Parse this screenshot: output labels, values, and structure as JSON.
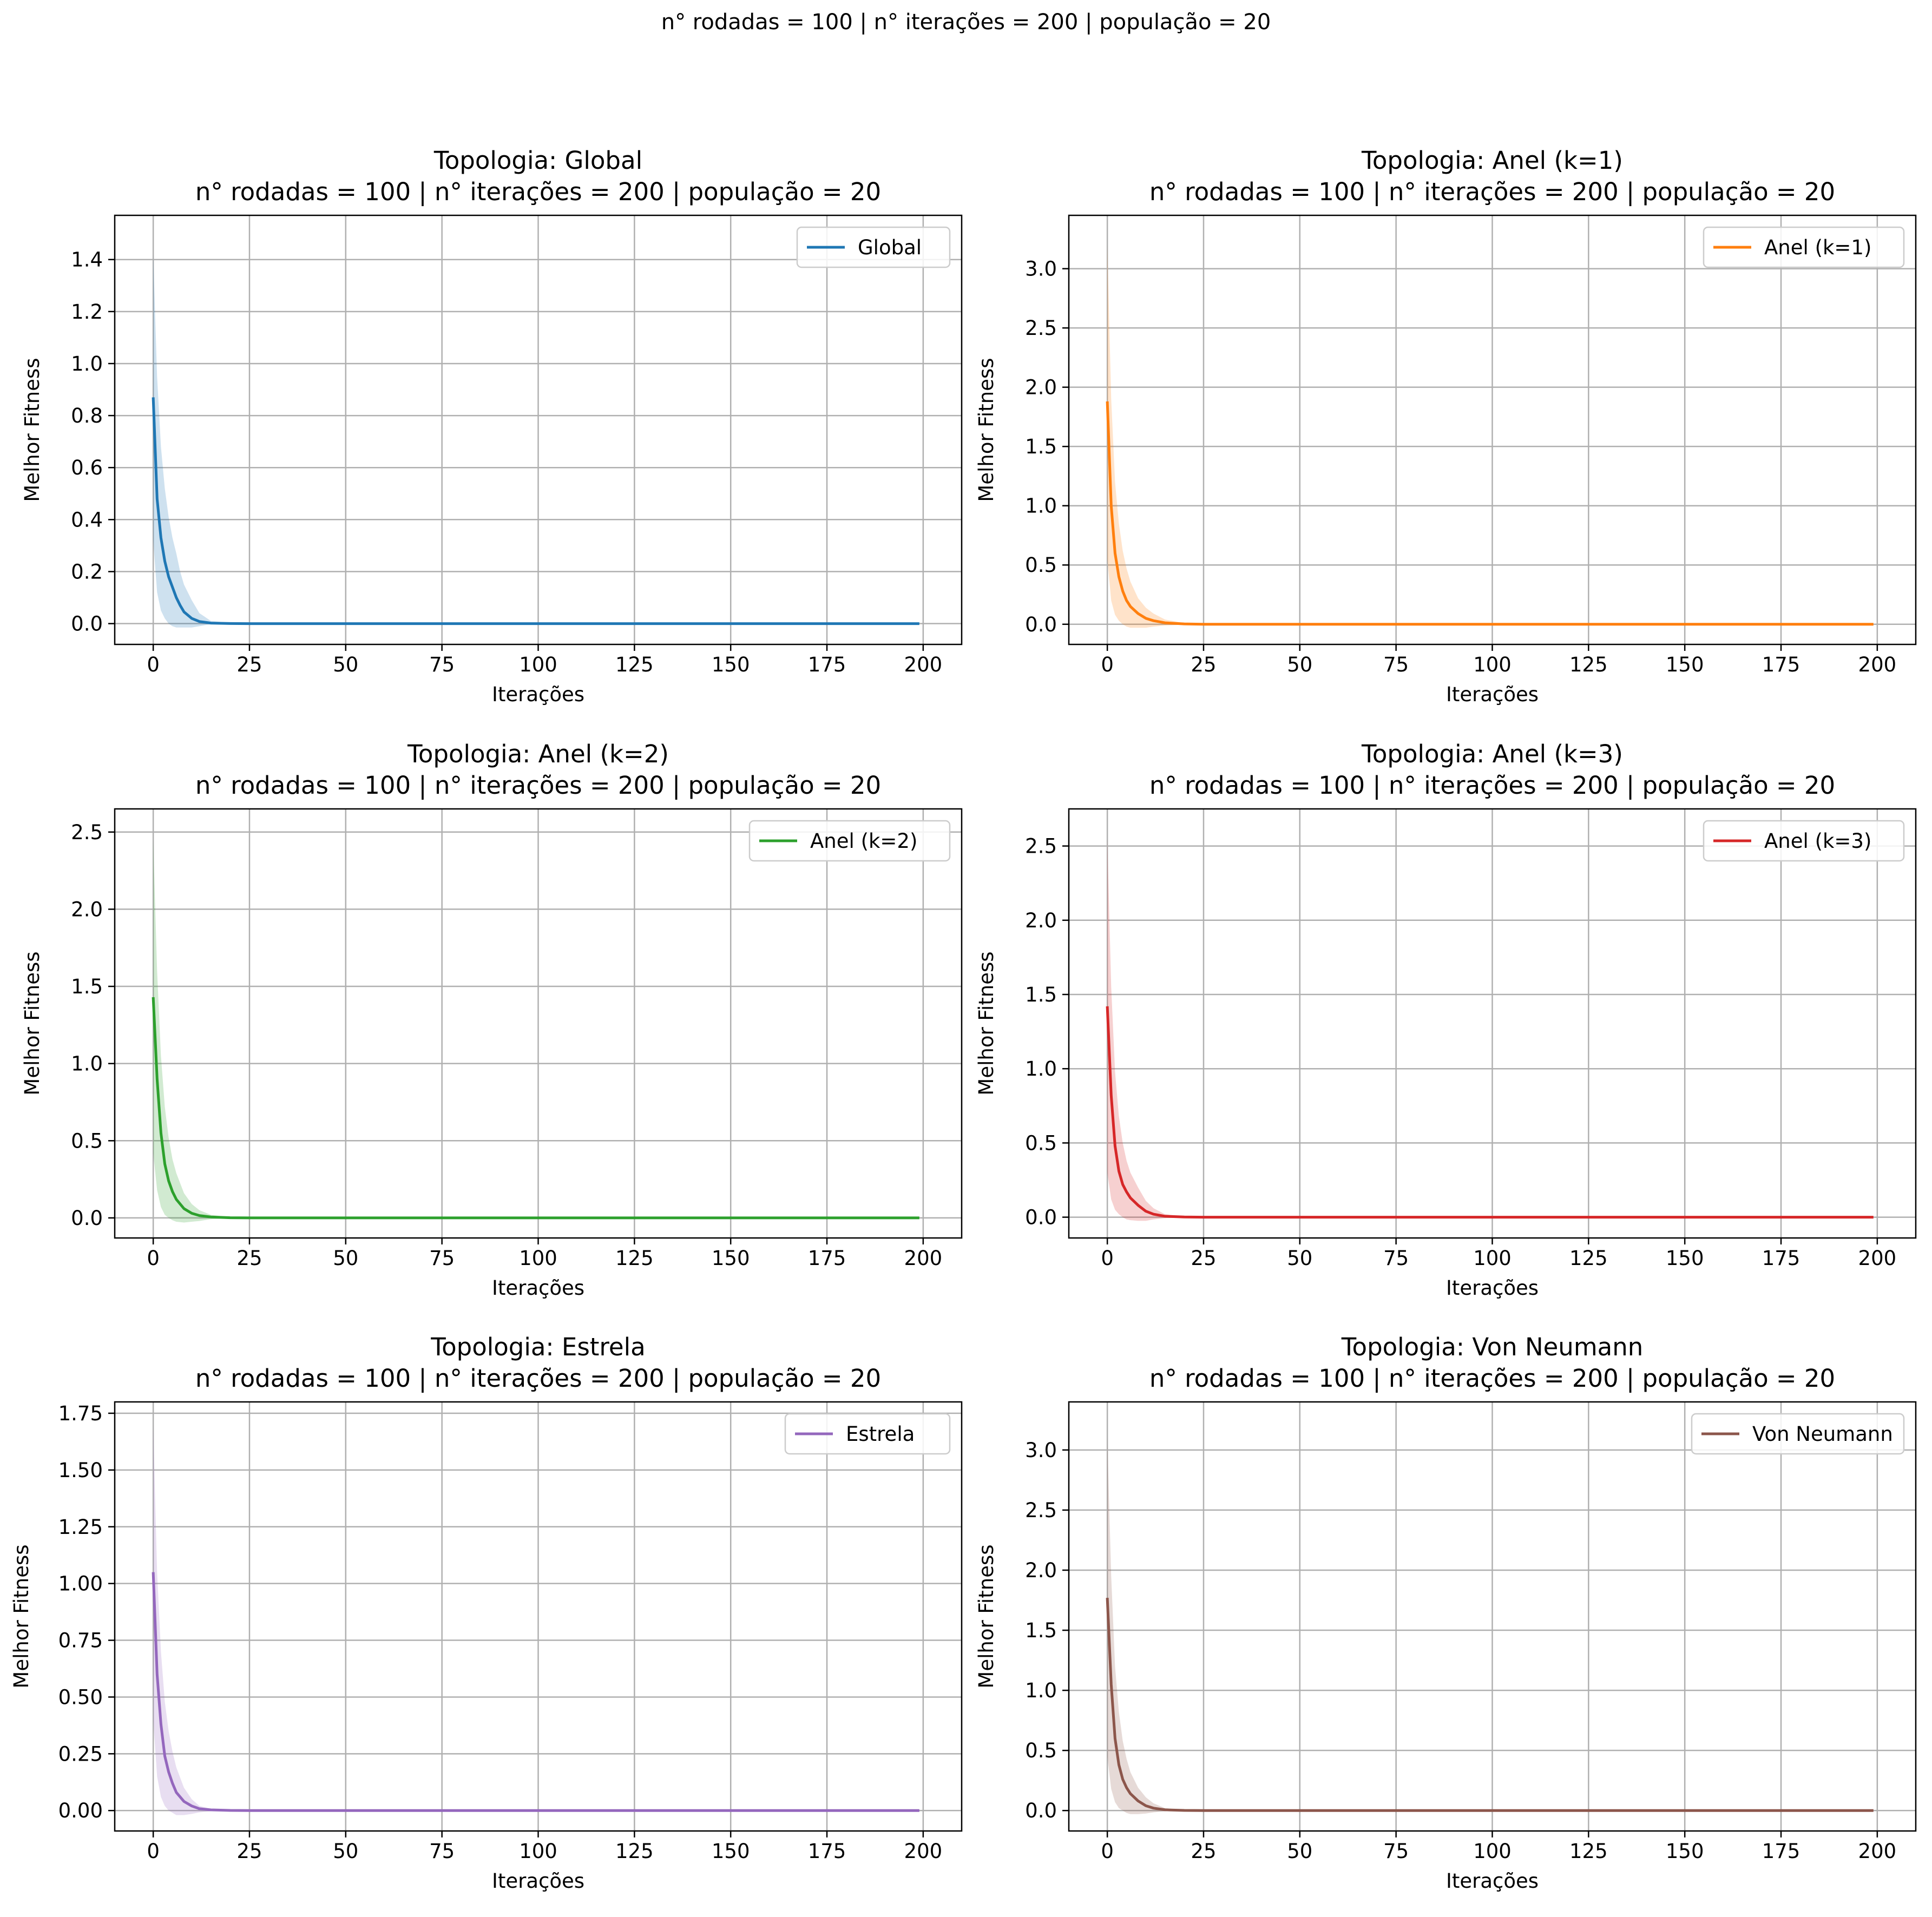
{
  "suptitle": "n° rodadas = 100 | n° iterações = 200 | população = 20",
  "chart_data": [
    {
      "type": "line",
      "title": "Topologia: Global",
      "subtitle": "n° rodadas = 100 | n° iterações = 200 | população = 20",
      "xlabel": "Iterações",
      "ylabel": "Melhor Fitness",
      "xlim": [
        -10,
        210
      ],
      "ylim": [
        -0.08,
        1.57
      ],
      "xticks": [
        0,
        25,
        50,
        75,
        100,
        125,
        150,
        175,
        200
      ],
      "yticks": [
        0.0,
        0.2,
        0.4,
        0.6,
        0.8,
        1.0,
        1.2,
        1.4
      ],
      "ytick_labels": [
        "0.0",
        "0.2",
        "0.4",
        "0.6",
        "0.8",
        "1.0",
        "1.2",
        "1.4"
      ],
      "grid": true,
      "legend_position": "top-right",
      "color": "#1f77b4",
      "series": [
        {
          "name": "Global",
          "x": [
            0,
            1,
            2,
            3,
            4,
            5,
            6,
            7,
            8,
            10,
            12,
            15,
            20,
            25,
            50,
            100,
            150,
            199
          ],
          "y": [
            0.87,
            0.48,
            0.33,
            0.24,
            0.18,
            0.14,
            0.1,
            0.07,
            0.045,
            0.02,
            0.008,
            0.002,
            0.0004,
            0.0,
            0.0,
            0.0,
            0.0,
            0.0
          ],
          "upper": [
            1.42,
            0.95,
            0.68,
            0.52,
            0.41,
            0.33,
            0.27,
            0.2,
            0.15,
            0.09,
            0.04,
            0.01,
            0.003,
            0.0,
            0.0,
            0.0,
            0.0,
            0.0
          ],
          "lower": [
            0.32,
            0.12,
            0.05,
            0.02,
            0.0,
            -0.01,
            -0.015,
            -0.015,
            -0.015,
            -0.015,
            -0.01,
            -0.002,
            -0.001,
            0.0,
            0.0,
            0.0,
            0.0,
            0.0
          ]
        }
      ]
    },
    {
      "type": "line",
      "title": "Topologia: Anel (k=1)",
      "subtitle": "n° rodadas = 100 | n° iterações = 200 | população = 20",
      "xlabel": "Iterações",
      "ylabel": "Melhor Fitness",
      "xlim": [
        -10,
        210
      ],
      "ylim": [
        -0.17,
        3.45
      ],
      "xticks": [
        0,
        25,
        50,
        75,
        100,
        125,
        150,
        175,
        200
      ],
      "yticks": [
        0.0,
        0.5,
        1.0,
        1.5,
        2.0,
        2.5,
        3.0
      ],
      "ytick_labels": [
        "0.0",
        "0.5",
        "1.0",
        "1.5",
        "2.0",
        "2.5",
        "3.0"
      ],
      "grid": true,
      "legend_position": "top-right",
      "color": "#ff7f0e",
      "series": [
        {
          "name": "Anel (k=1)",
          "x": [
            0,
            1,
            2,
            3,
            4,
            5,
            6,
            8,
            10,
            12,
            15,
            20,
            25,
            50,
            100,
            150,
            199
          ],
          "y": [
            1.88,
            1.0,
            0.6,
            0.4,
            0.28,
            0.2,
            0.15,
            0.09,
            0.05,
            0.03,
            0.012,
            0.003,
            0.0,
            0.0,
            0.0,
            0.0,
            0.0
          ],
          "upper": [
            3.2,
            1.9,
            1.2,
            0.85,
            0.62,
            0.47,
            0.36,
            0.22,
            0.14,
            0.09,
            0.04,
            0.01,
            0.002,
            0.0,
            0.0,
            0.0,
            0.0
          ],
          "lower": [
            0.55,
            0.2,
            0.08,
            0.03,
            0.0,
            -0.02,
            -0.03,
            -0.03,
            -0.03,
            -0.02,
            -0.01,
            -0.003,
            0.0,
            0.0,
            0.0,
            0.0,
            0.0
          ]
        }
      ]
    },
    {
      "type": "line",
      "title": "Topologia: Anel (k=2)",
      "subtitle": "n° rodadas = 100 | n° iterações = 200 | população = 20",
      "xlabel": "Iterações",
      "ylabel": "Melhor Fitness",
      "xlim": [
        -10,
        210
      ],
      "ylim": [
        -0.13,
        2.65
      ],
      "xticks": [
        0,
        25,
        50,
        75,
        100,
        125,
        150,
        175,
        200
      ],
      "yticks": [
        0.0,
        0.5,
        1.0,
        1.5,
        2.0,
        2.5
      ],
      "ytick_labels": [
        "0.0",
        "0.5",
        "1.0",
        "1.5",
        "2.0",
        "2.5"
      ],
      "grid": true,
      "legend_position": "top-right",
      "color": "#2ca02c",
      "series": [
        {
          "name": "Anel (k=2)",
          "x": [
            0,
            1,
            2,
            3,
            4,
            5,
            6,
            8,
            10,
            12,
            15,
            20,
            25,
            50,
            100,
            150,
            199
          ],
          "y": [
            1.43,
            0.9,
            0.55,
            0.35,
            0.24,
            0.17,
            0.12,
            0.06,
            0.03,
            0.015,
            0.006,
            0.001,
            0.0,
            0.0,
            0.0,
            0.0,
            0.0
          ],
          "upper": [
            2.45,
            1.6,
            1.05,
            0.72,
            0.52,
            0.38,
            0.29,
            0.16,
            0.09,
            0.05,
            0.02,
            0.004,
            0.0,
            0.0,
            0.0,
            0.0,
            0.0
          ],
          "lower": [
            0.42,
            0.18,
            0.07,
            0.02,
            0.0,
            -0.015,
            -0.025,
            -0.03,
            -0.025,
            -0.02,
            -0.008,
            -0.002,
            0.0,
            0.0,
            0.0,
            0.0,
            0.0
          ]
        }
      ]
    },
    {
      "type": "line",
      "title": "Topologia: Anel (k=3)",
      "subtitle": "n° rodadas = 100 | n° iterações = 200 | população = 20",
      "xlabel": "Iterações",
      "ylabel": "Melhor Fitness",
      "xlim": [
        -10,
        210
      ],
      "ylim": [
        -0.14,
        2.75
      ],
      "xticks": [
        0,
        25,
        50,
        75,
        100,
        125,
        150,
        175,
        200
      ],
      "yticks": [
        0.0,
        0.5,
        1.0,
        1.5,
        2.0,
        2.5
      ],
      "ytick_labels": [
        "0.0",
        "0.5",
        "1.0",
        "1.5",
        "2.0",
        "2.5"
      ],
      "grid": true,
      "legend_position": "top-right",
      "color": "#d62728",
      "series": [
        {
          "name": "Anel (k=3)",
          "x": [
            0,
            1,
            2,
            3,
            4,
            5,
            6,
            8,
            10,
            12,
            15,
            20,
            25,
            50,
            100,
            150,
            199
          ],
          "y": [
            1.42,
            0.82,
            0.48,
            0.31,
            0.22,
            0.17,
            0.13,
            0.08,
            0.04,
            0.02,
            0.006,
            0.001,
            0.0,
            0.0,
            0.0,
            0.0,
            0.0
          ],
          "upper": [
            2.55,
            1.55,
            0.98,
            0.68,
            0.5,
            0.38,
            0.3,
            0.2,
            0.11,
            0.06,
            0.02,
            0.004,
            0.0,
            0.0,
            0.0,
            0.0,
            0.0
          ],
          "lower": [
            0.3,
            0.12,
            0.05,
            0.02,
            0.0,
            -0.015,
            -0.02,
            -0.025,
            -0.025,
            -0.015,
            -0.006,
            -0.002,
            0.0,
            0.0,
            0.0,
            0.0,
            0.0
          ]
        }
      ]
    },
    {
      "type": "line",
      "title": "Topologia: Estrela",
      "subtitle": "n° rodadas = 100 | n° iterações = 200 | população = 20",
      "xlabel": "Iterações",
      "ylabel": "Melhor Fitness",
      "xlim": [
        -10,
        210
      ],
      "ylim": [
        -0.09,
        1.8
      ],
      "xticks": [
        0,
        25,
        50,
        75,
        100,
        125,
        150,
        175,
        200
      ],
      "yticks": [
        0.0,
        0.25,
        0.5,
        0.75,
        1.0,
        1.25,
        1.5,
        1.75
      ],
      "ytick_labels": [
        "0.00",
        "0.25",
        "0.50",
        "0.75",
        "1.00",
        "1.25",
        "1.50",
        "1.75"
      ],
      "grid": true,
      "legend_position": "top-right",
      "color": "#9467bd",
      "series": [
        {
          "name": "Estrela",
          "x": [
            0,
            1,
            2,
            3,
            4,
            5,
            6,
            8,
            10,
            12,
            15,
            20,
            25,
            50,
            100,
            150,
            199
          ],
          "y": [
            1.05,
            0.6,
            0.38,
            0.24,
            0.17,
            0.12,
            0.08,
            0.04,
            0.02,
            0.008,
            0.003,
            0.0005,
            0.0,
            0.0,
            0.0,
            0.0,
            0.0
          ],
          "upper": [
            1.7,
            1.05,
            0.7,
            0.48,
            0.35,
            0.26,
            0.19,
            0.1,
            0.05,
            0.02,
            0.008,
            0.002,
            0.0,
            0.0,
            0.0,
            0.0,
            0.0
          ],
          "lower": [
            0.4,
            0.15,
            0.06,
            0.02,
            0.0,
            -0.01,
            -0.02,
            -0.02,
            -0.015,
            -0.008,
            -0.003,
            -0.001,
            0.0,
            0.0,
            0.0,
            0.0,
            0.0
          ]
        }
      ]
    },
    {
      "type": "line",
      "title": "Topologia: Von Neumann",
      "subtitle": "n° rodadas = 100 | n° iterações = 200 | população = 20",
      "xlabel": "Iterações",
      "ylabel": "Melhor Fitness",
      "xlim": [
        -10,
        210
      ],
      "ylim": [
        -0.17,
        3.4
      ],
      "xticks": [
        0,
        25,
        50,
        75,
        100,
        125,
        150,
        175,
        200
      ],
      "yticks": [
        0.0,
        0.5,
        1.0,
        1.5,
        2.0,
        2.5,
        3.0
      ],
      "ytick_labels": [
        "0.0",
        "0.5",
        "1.0",
        "1.5",
        "2.0",
        "2.5",
        "3.0"
      ],
      "grid": true,
      "legend_position": "top-right",
      "color": "#8c564b",
      "series": [
        {
          "name": "Von Neumann",
          "x": [
            0,
            1,
            2,
            3,
            4,
            5,
            6,
            8,
            10,
            12,
            15,
            20,
            25,
            50,
            100,
            150,
            199
          ],
          "y": [
            1.77,
            1.05,
            0.6,
            0.38,
            0.26,
            0.19,
            0.14,
            0.08,
            0.04,
            0.02,
            0.006,
            0.001,
            0.0,
            0.0,
            0.0,
            0.0,
            0.0
          ],
          "upper": [
            3.1,
            1.95,
            1.2,
            0.82,
            0.58,
            0.43,
            0.32,
            0.19,
            0.11,
            0.06,
            0.02,
            0.004,
            0.0,
            0.0,
            0.0,
            0.0,
            0.0
          ],
          "lower": [
            0.45,
            0.18,
            0.07,
            0.02,
            0.0,
            -0.02,
            -0.03,
            -0.03,
            -0.025,
            -0.015,
            -0.006,
            -0.002,
            0.0,
            0.0,
            0.0,
            0.0,
            0.0
          ]
        }
      ]
    }
  ]
}
